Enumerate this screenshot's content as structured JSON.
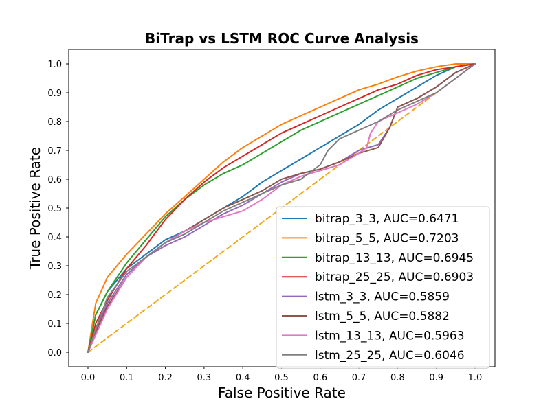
{
  "chart_data": {
    "type": "line",
    "title": "BiTrap vs LSTM ROC Curve Analysis",
    "xlabel": "False Positive Rate",
    "ylabel": "True Positive Rate",
    "xlim": [
      0,
      1
    ],
    "ylim": [
      0,
      1
    ],
    "x_ticks": [
      "0.0",
      "0.1",
      "0.2",
      "0.3",
      "0.4",
      "0.5",
      "0.6",
      "0.7",
      "0.8",
      "0.9",
      "1.0"
    ],
    "y_ticks": [
      "0.0",
      "0.1",
      "0.2",
      "0.3",
      "0.4",
      "0.5",
      "0.6",
      "0.7",
      "0.8",
      "0.9",
      "1.0"
    ],
    "grid": false,
    "legend_position": "lower-right",
    "series": [
      {
        "name": "bitrap_3_3, AUC=0.6471",
        "color": "#1f77b4",
        "x": [
          0,
          0.02,
          0.05,
          0.1,
          0.15,
          0.2,
          0.25,
          0.3,
          0.35,
          0.4,
          0.45,
          0.5,
          0.55,
          0.6,
          0.65,
          0.7,
          0.75,
          0.8,
          0.85,
          0.9,
          0.95,
          1.0
        ],
        "y": [
          0,
          0.13,
          0.21,
          0.29,
          0.34,
          0.39,
          0.42,
          0.46,
          0.5,
          0.54,
          0.59,
          0.63,
          0.67,
          0.71,
          0.75,
          0.79,
          0.84,
          0.88,
          0.92,
          0.96,
          0.99,
          1.0
        ]
      },
      {
        "name": "bitrap_5_5, AUC=0.7203",
        "color": "#ff7f0e",
        "x": [
          0,
          0.02,
          0.05,
          0.1,
          0.15,
          0.2,
          0.25,
          0.3,
          0.35,
          0.4,
          0.45,
          0.5,
          0.55,
          0.6,
          0.65,
          0.7,
          0.75,
          0.8,
          0.85,
          0.9,
          0.95,
          1.0
        ],
        "y": [
          0,
          0.17,
          0.26,
          0.34,
          0.41,
          0.48,
          0.54,
          0.6,
          0.66,
          0.71,
          0.75,
          0.79,
          0.82,
          0.85,
          0.88,
          0.91,
          0.93,
          0.955,
          0.975,
          0.99,
          1.0,
          1.0
        ]
      },
      {
        "name": "bitrap_13_13, AUC=0.6945",
        "color": "#2ca02c",
        "x": [
          0,
          0.02,
          0.05,
          0.1,
          0.15,
          0.2,
          0.25,
          0.3,
          0.35,
          0.4,
          0.45,
          0.5,
          0.55,
          0.6,
          0.65,
          0.7,
          0.75,
          0.8,
          0.85,
          0.9,
          0.95,
          1.0
        ],
        "y": [
          0,
          0.13,
          0.21,
          0.31,
          0.39,
          0.47,
          0.53,
          0.58,
          0.62,
          0.65,
          0.69,
          0.73,
          0.77,
          0.8,
          0.83,
          0.86,
          0.89,
          0.92,
          0.95,
          0.97,
          0.99,
          1.0
        ]
      },
      {
        "name": "bitrap_25_25, AUC=0.6903",
        "color": "#d62728",
        "x": [
          0,
          0.02,
          0.05,
          0.1,
          0.15,
          0.2,
          0.25,
          0.3,
          0.35,
          0.4,
          0.45,
          0.5,
          0.55,
          0.6,
          0.65,
          0.7,
          0.75,
          0.8,
          0.85,
          0.9,
          0.95,
          1.0
        ],
        "y": [
          0,
          0.1,
          0.18,
          0.29,
          0.37,
          0.46,
          0.53,
          0.59,
          0.64,
          0.68,
          0.72,
          0.76,
          0.79,
          0.82,
          0.85,
          0.88,
          0.91,
          0.93,
          0.96,
          0.98,
          0.99,
          1.0
        ]
      },
      {
        "name": "lstm_3_3, AUC=0.5859",
        "color": "#9467bd",
        "x": [
          0,
          0.02,
          0.05,
          0.1,
          0.15,
          0.2,
          0.25,
          0.3,
          0.35,
          0.4,
          0.45,
          0.5,
          0.55,
          0.6,
          0.65,
          0.7,
          0.75,
          0.78,
          0.8,
          0.85,
          0.9,
          0.95,
          1.0
        ],
        "y": [
          0,
          0.08,
          0.17,
          0.27,
          0.33,
          0.37,
          0.4,
          0.44,
          0.48,
          0.51,
          0.55,
          0.59,
          0.62,
          0.635,
          0.66,
          0.7,
          0.72,
          0.78,
          0.85,
          0.88,
          0.92,
          0.97,
          1.0
        ]
      },
      {
        "name": "lstm_5_5, AUC=0.5882",
        "color": "#8c564b",
        "x": [
          0,
          0.02,
          0.05,
          0.1,
          0.15,
          0.2,
          0.25,
          0.3,
          0.35,
          0.4,
          0.45,
          0.5,
          0.55,
          0.6,
          0.65,
          0.7,
          0.75,
          0.78,
          0.8,
          0.85,
          0.9,
          0.95,
          1.0
        ],
        "y": [
          0,
          0.07,
          0.16,
          0.26,
          0.33,
          0.38,
          0.42,
          0.46,
          0.5,
          0.53,
          0.56,
          0.6,
          0.62,
          0.635,
          0.66,
          0.69,
          0.71,
          0.78,
          0.85,
          0.88,
          0.92,
          0.97,
          1.0
        ]
      },
      {
        "name": "lstm_13_13, AUC=0.5963",
        "color": "#e377c2",
        "x": [
          0,
          0.02,
          0.05,
          0.1,
          0.15,
          0.2,
          0.25,
          0.3,
          0.35,
          0.4,
          0.45,
          0.5,
          0.55,
          0.6,
          0.65,
          0.7,
          0.72,
          0.73,
          0.75,
          0.8,
          0.85,
          0.9,
          0.95,
          1.0
        ],
        "y": [
          0,
          0.06,
          0.15,
          0.26,
          0.33,
          0.38,
          0.42,
          0.45,
          0.47,
          0.49,
          0.53,
          0.58,
          0.61,
          0.63,
          0.65,
          0.69,
          0.71,
          0.76,
          0.8,
          0.83,
          0.86,
          0.9,
          0.95,
          1.0
        ]
      },
      {
        "name": "lstm_25_25, AUC=0.6046",
        "color": "#7f7f7f",
        "x": [
          0,
          0.02,
          0.05,
          0.1,
          0.15,
          0.2,
          0.25,
          0.3,
          0.35,
          0.4,
          0.45,
          0.5,
          0.55,
          0.6,
          0.62,
          0.65,
          0.7,
          0.75,
          0.8,
          0.85,
          0.9,
          0.95,
          1.0
        ],
        "y": [
          0,
          0.08,
          0.19,
          0.28,
          0.33,
          0.38,
          0.41,
          0.45,
          0.49,
          0.52,
          0.55,
          0.58,
          0.6,
          0.65,
          0.7,
          0.74,
          0.77,
          0.8,
          0.84,
          0.87,
          0.9,
          0.95,
          1.0
        ]
      },
      {
        "name": "",
        "color": "#f0a818",
        "dashed": true,
        "in_legend": false,
        "x": [
          0,
          1
        ],
        "y": [
          0,
          1
        ]
      }
    ]
  }
}
